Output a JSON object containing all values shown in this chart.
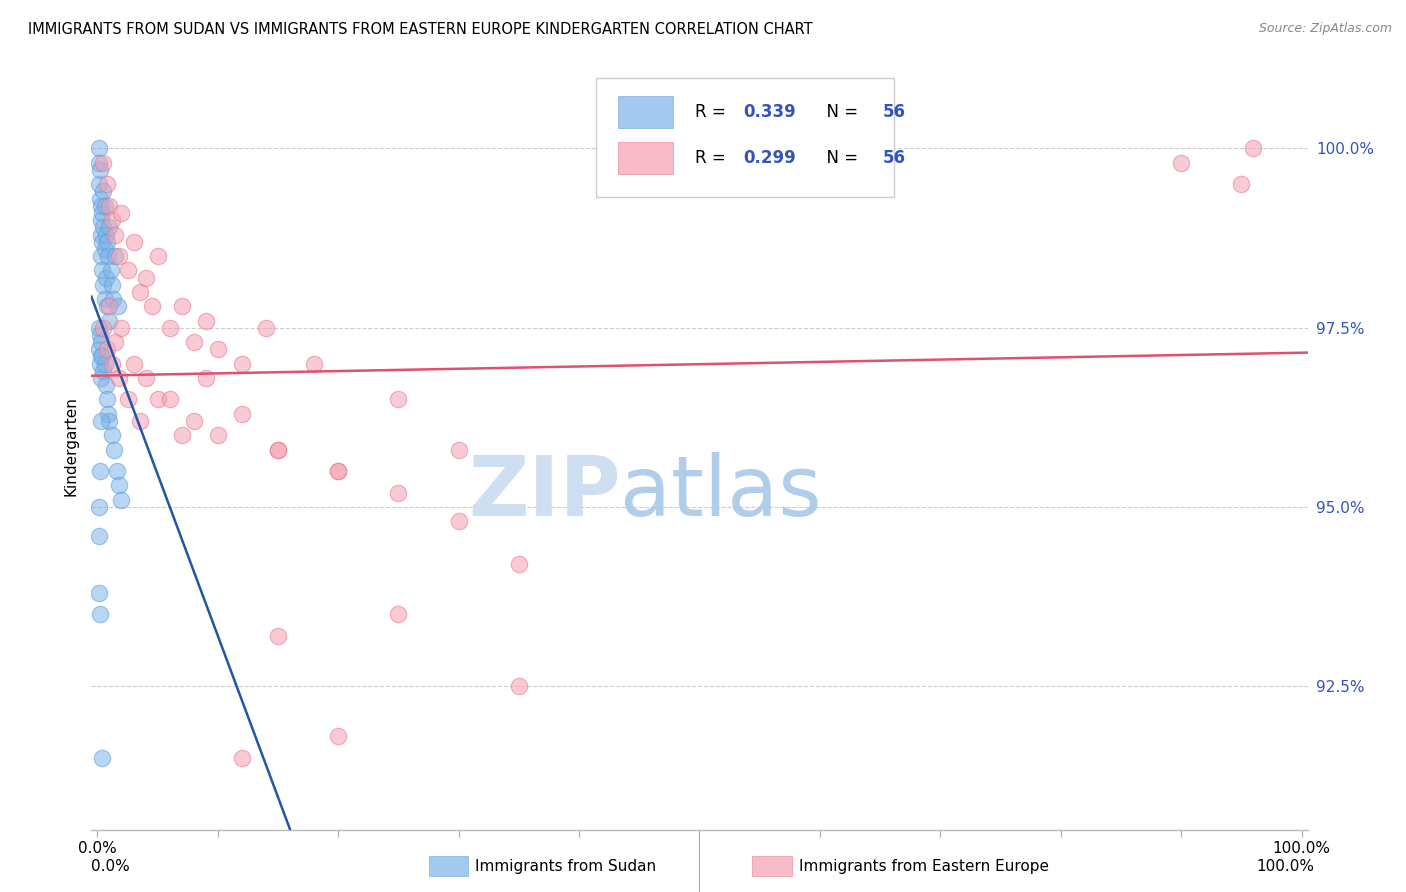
{
  "title": "IMMIGRANTS FROM SUDAN VS IMMIGRANTS FROM EASTERN EUROPE KINDERGARTEN CORRELATION CHART",
  "source": "Source: ZipAtlas.com",
  "ylabel": "Kindergarten",
  "legend_blue_label": "Immigrants from Sudan",
  "legend_pink_label": "Immigrants from Eastern Europe",
  "blue_color": "#7EB3E8",
  "blue_edge_color": "#5A9BD5",
  "pink_color": "#F4A0B0",
  "pink_edge_color": "#E87090",
  "blue_line_color": "#2255AA",
  "pink_line_color": "#E05070",
  "r_n_color": "#3355BB",
  "ytick_color": "#3355BB",
  "watermark_zip_color": "#C8DCF0",
  "watermark_atlas_color": "#A8C8E8",
  "grid_color": "#CCCCCC",
  "ylim_min": 90.5,
  "ylim_max": 101.2,
  "xlim_min": -0.005,
  "xlim_max": 1.005,
  "yticks": [
    92.5,
    95.0,
    97.5,
    100.0
  ],
  "xticks": [
    0.0,
    0.1,
    0.2,
    0.3,
    0.4,
    0.5,
    0.6,
    0.7,
    0.8,
    0.9,
    1.0
  ],
  "blue_r": 0.339,
  "blue_n": 56,
  "pink_r": 0.299,
  "pink_n": 56,
  "blue_x": [
    0.001,
    0.001,
    0.001,
    0.002,
    0.002,
    0.003,
    0.003,
    0.003,
    0.003,
    0.004,
    0.004,
    0.004,
    0.005,
    0.005,
    0.005,
    0.006,
    0.006,
    0.006,
    0.007,
    0.007,
    0.008,
    0.008,
    0.009,
    0.01,
    0.01,
    0.011,
    0.012,
    0.013,
    0.015,
    0.017,
    0.001,
    0.001,
    0.002,
    0.002,
    0.003,
    0.003,
    0.004,
    0.005,
    0.006,
    0.007,
    0.008,
    0.009,
    0.01,
    0.012,
    0.014,
    0.016,
    0.018,
    0.02,
    0.001,
    0.001,
    0.001,
    0.002,
    0.002,
    0.003,
    0.003,
    0.004
  ],
  "blue_y": [
    100.0,
    99.8,
    99.5,
    99.7,
    99.3,
    99.2,
    99.0,
    98.8,
    98.5,
    99.1,
    98.7,
    98.3,
    99.4,
    98.9,
    98.1,
    99.2,
    98.6,
    97.9,
    98.8,
    98.2,
    98.7,
    97.8,
    98.5,
    98.9,
    97.6,
    98.3,
    98.1,
    97.9,
    98.5,
    97.8,
    97.5,
    97.2,
    97.4,
    97.0,
    97.3,
    96.8,
    97.1,
    96.9,
    97.0,
    96.7,
    96.5,
    96.3,
    96.2,
    96.0,
    95.8,
    95.5,
    95.3,
    95.1,
    95.0,
    94.6,
    93.8,
    93.5,
    95.5,
    96.2,
    97.1,
    91.5
  ],
  "pink_x": [
    0.005,
    0.008,
    0.01,
    0.012,
    0.015,
    0.018,
    0.02,
    0.025,
    0.03,
    0.035,
    0.04,
    0.045,
    0.05,
    0.06,
    0.07,
    0.08,
    0.09,
    0.1,
    0.12,
    0.14,
    0.005,
    0.008,
    0.012,
    0.018,
    0.025,
    0.035,
    0.05,
    0.07,
    0.09,
    0.12,
    0.15,
    0.18,
    0.2,
    0.25,
    0.3,
    0.01,
    0.015,
    0.02,
    0.03,
    0.04,
    0.06,
    0.08,
    0.1,
    0.15,
    0.2,
    0.25,
    0.3,
    0.35,
    0.15,
    0.2,
    0.12,
    0.25,
    0.35,
    0.9,
    0.95,
    0.96
  ],
  "pink_y": [
    99.8,
    99.5,
    99.2,
    99.0,
    98.8,
    98.5,
    99.1,
    98.3,
    98.7,
    98.0,
    98.2,
    97.8,
    98.5,
    97.5,
    97.8,
    97.3,
    97.6,
    97.2,
    97.0,
    97.5,
    97.5,
    97.2,
    97.0,
    96.8,
    96.5,
    96.2,
    96.5,
    96.0,
    96.8,
    96.3,
    95.8,
    97.0,
    95.5,
    96.5,
    95.8,
    97.8,
    97.3,
    97.5,
    97.0,
    96.8,
    96.5,
    96.2,
    96.0,
    95.8,
    95.5,
    95.2,
    94.8,
    94.2,
    93.2,
    91.8,
    91.5,
    93.5,
    92.5,
    99.8,
    99.5,
    100.0
  ]
}
